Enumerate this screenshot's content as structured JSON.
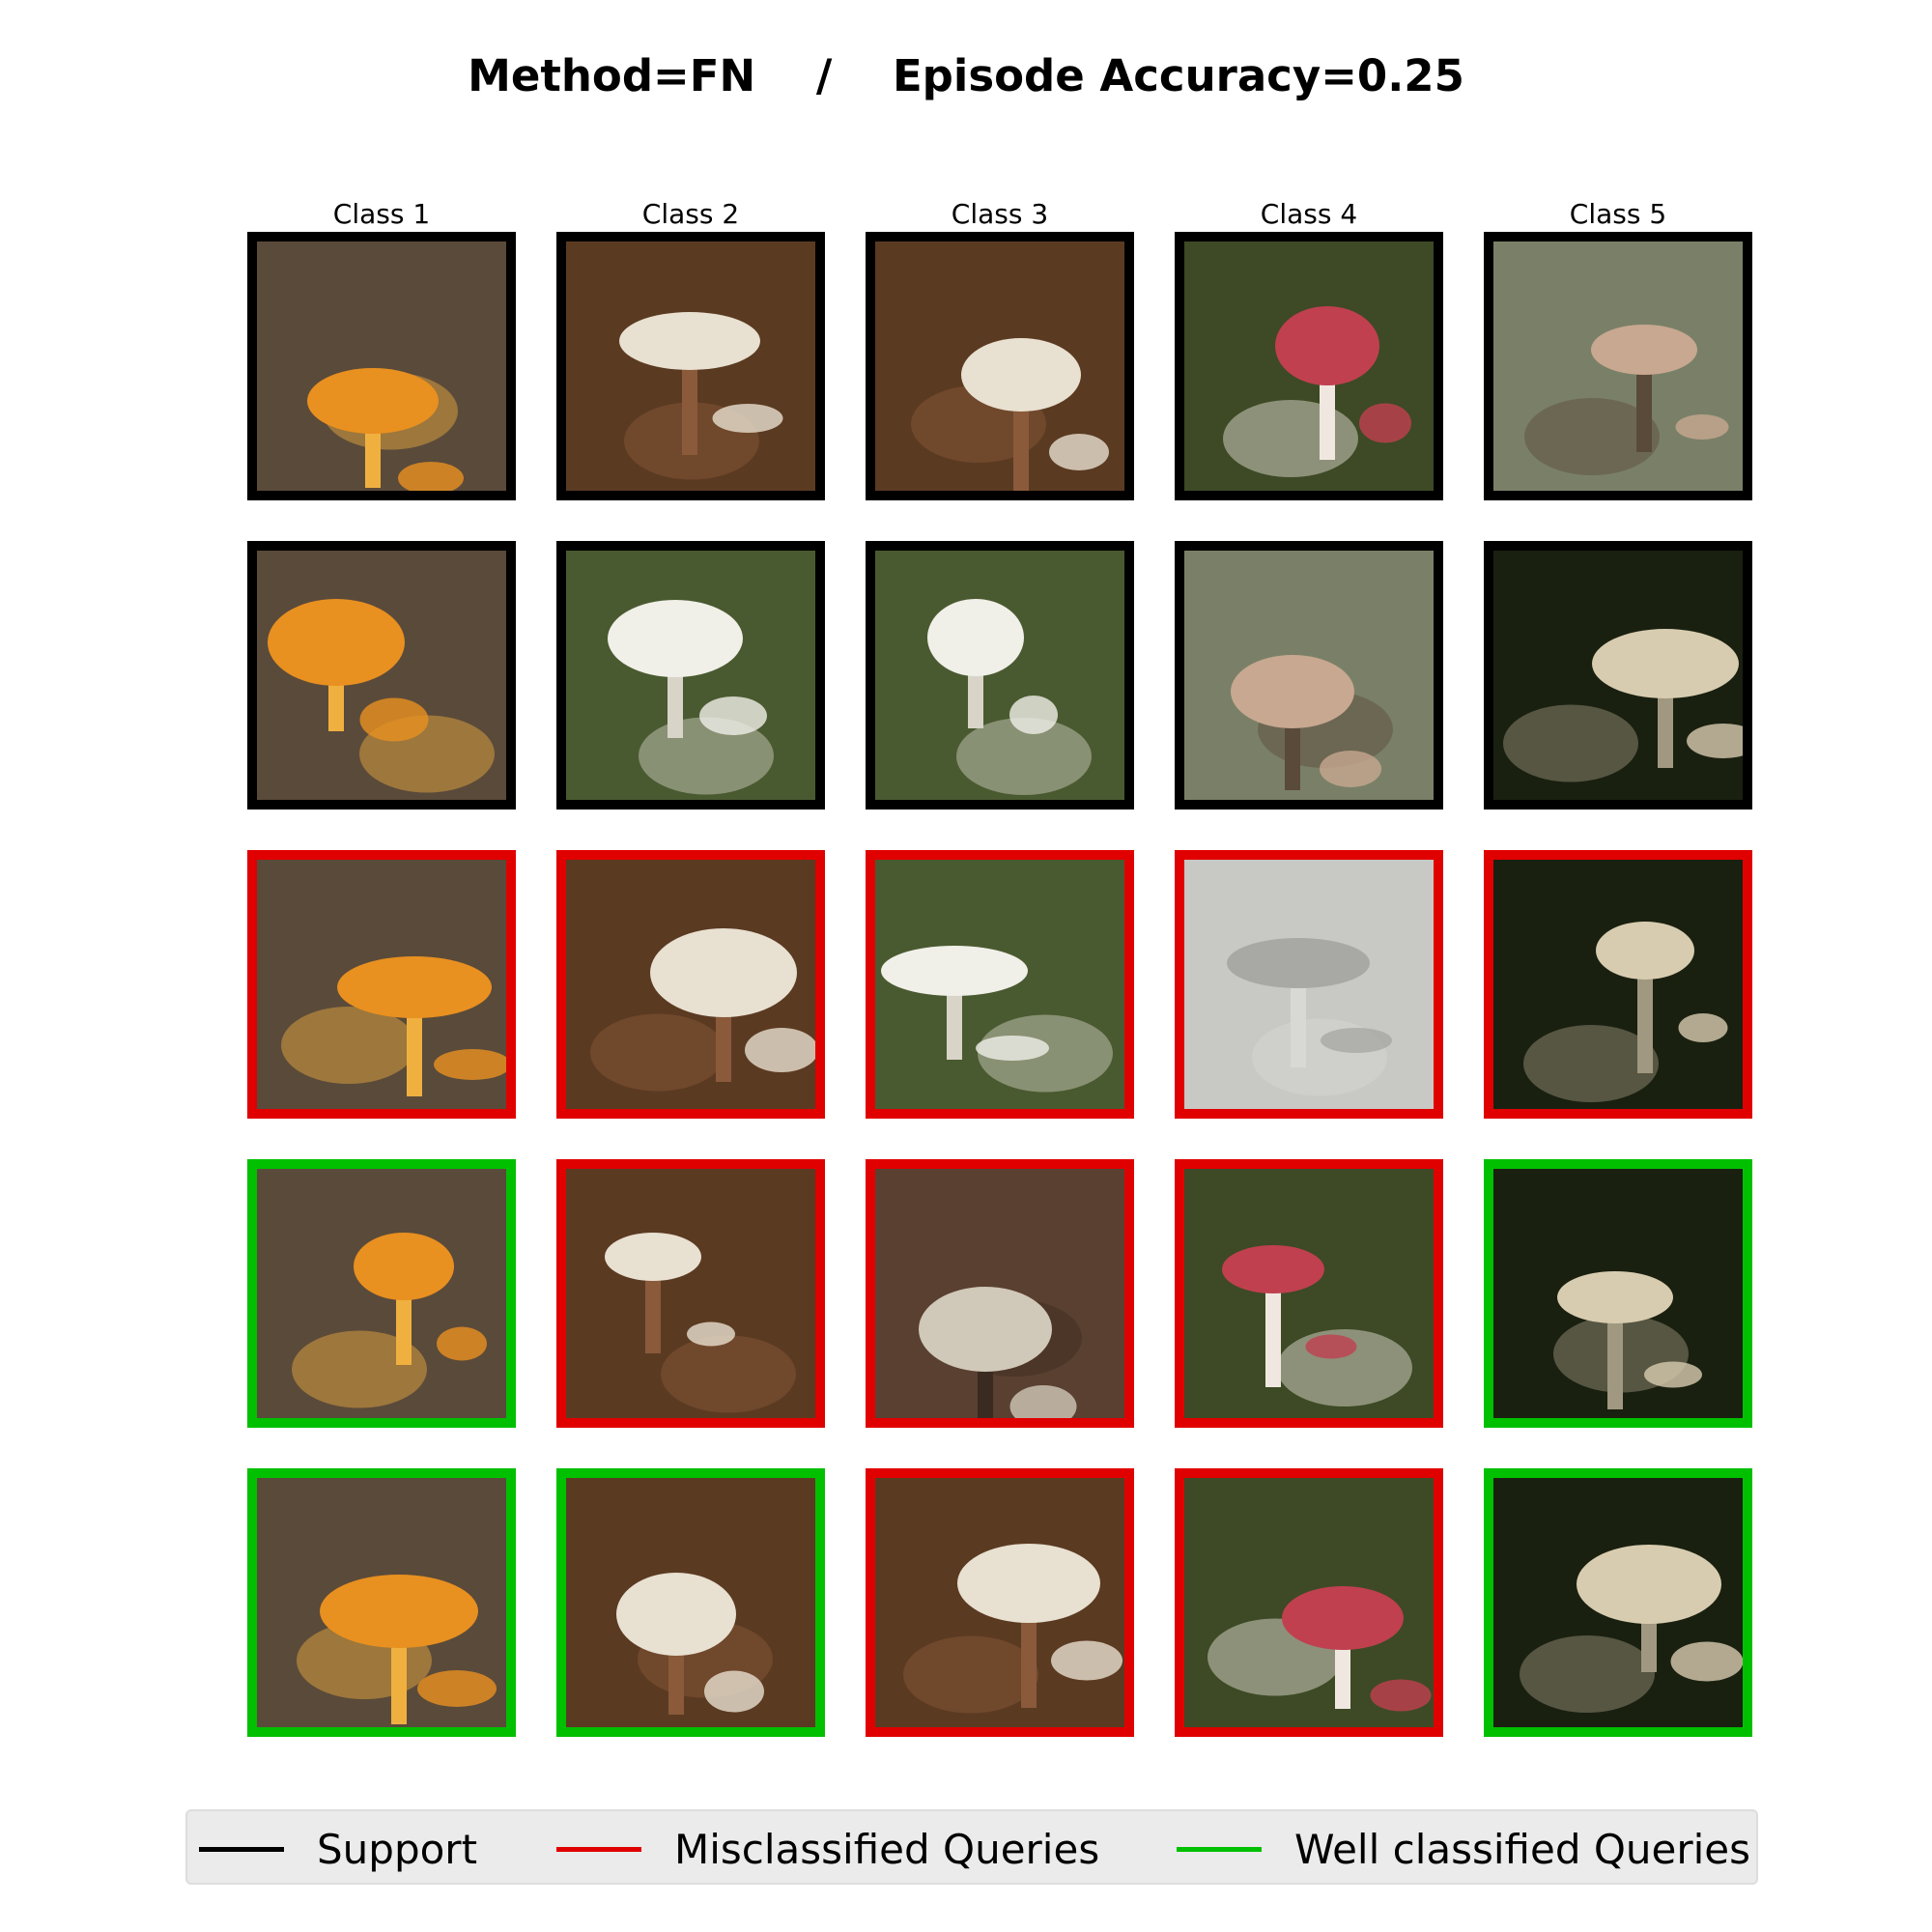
{
  "title": {
    "method": "Method=FN",
    "separator": "/",
    "accuracy": "Episode Accuracy=0.25"
  },
  "columns": [
    "Class 1",
    "Class 2",
    "Class 3",
    "Class 4",
    "Class 5"
  ],
  "rows": [
    {
      "role": "support",
      "images": [
        "orange-shelf-fungus",
        "amanita-in-leaves",
        "white-amanita-among-ivy",
        "red-russula-and-white-mushroom",
        "specimens-on-green-board"
      ]
    },
    {
      "role": "support",
      "images": [
        "orange-bracket-fungus",
        "white-ragged-mushroom",
        "white-cap-mushroom-in-grass",
        "mushroom-with-ruler",
        "white-coral-fungus"
      ]
    },
    {
      "role": "query",
      "results": [
        "misclassified",
        "misclassified",
        "misclassified",
        "misclassified",
        "misclassified"
      ],
      "images": [
        "tan-bracket-fungus",
        "spotted-amanita",
        "small-mushroom-on-white",
        "microscope-hyphae",
        "pale-cluster-mushrooms"
      ]
    },
    {
      "role": "query",
      "results": [
        "well",
        "misclassified",
        "misclassified",
        "misclassified",
        "well"
      ],
      "images": [
        "orange-rosette-fungus",
        "spotted-brown-amanita",
        "mushroom-on-wood",
        "pink-russula",
        "white-fungi-in-moss"
      ]
    },
    {
      "role": "query",
      "results": [
        "well",
        "well",
        "misclassified",
        "misclassified",
        "well"
      ],
      "images": [
        "orange-cauliflower-fungus",
        "amanita-stem-in-grass",
        "white-amanitas-in-grass",
        "red-russula-pair",
        "pale-fungi-on-moss"
      ]
    }
  ],
  "legend": [
    {
      "label": "Support",
      "color": "#000000"
    },
    {
      "label": "Misclassified Queries",
      "color": "#e00000"
    },
    {
      "label": "Well classified Queries",
      "color": "#00c000"
    }
  ],
  "colors": {
    "support": "#000000",
    "misclassified": "#e00000",
    "well": "#00c000"
  }
}
